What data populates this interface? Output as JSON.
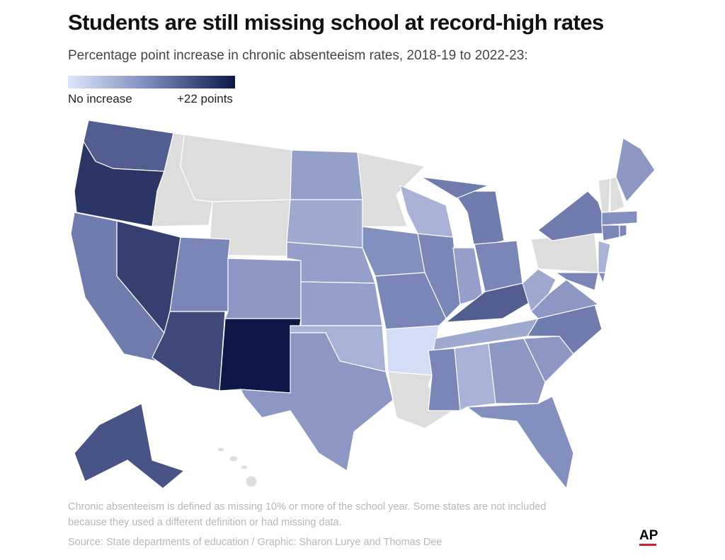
{
  "title": "Students are still missing school at record-high rates",
  "subtitle": "Percentage point increase in chronic absenteeism rates, 2018-19 to 2022-23:",
  "legend": {
    "min_label": "No increase",
    "max_label": "+22 points",
    "min": 0,
    "max": 22,
    "color_low": "#dce6fb",
    "color_high": "#0d1848",
    "no_data_color": "#dddddd"
  },
  "states": {
    "WA": 15,
    "OR": 19,
    "ID": null,
    "MT": null,
    "WY": null,
    "NV": 18,
    "CA": 12,
    "UT": 11,
    "AZ": 17,
    "CO": 9,
    "NM": 22,
    "ND": 8,
    "SD": 7,
    "NE": 8,
    "KS": 8,
    "OK": 6,
    "TX": 9,
    "MN": null,
    "IA": 10,
    "MO": 11,
    "AR": 1,
    "LA": null,
    "WI": 6,
    "IL": 11,
    "MI": 12,
    "IN": 8,
    "OH": 11,
    "KY": 15,
    "TN": 7,
    "MS": 11,
    "AL": 6,
    "GA": 9,
    "FL": 10,
    "SC": 9,
    "NC": 12,
    "VA": 9,
    "WV": 7,
    "PA": null,
    "NY": 12,
    "MD": 11,
    "NJ": 6,
    "DE": 10,
    "ME": 9,
    "VT": null,
    "NH": null,
    "MA": 10,
    "CT": 11,
    "RI": 11,
    "AK": 16,
    "HI": null
  },
  "notes": {
    "definition": "Chronic absenteeism is defined as missing 10% or more of the school year. Some states are not included",
    "definition2": "because they used a different definition or had missing data.",
    "source": "Source: State departments of education / Graphic: Sharon Lurye and Thomas Dee",
    "logo": "AP"
  }
}
